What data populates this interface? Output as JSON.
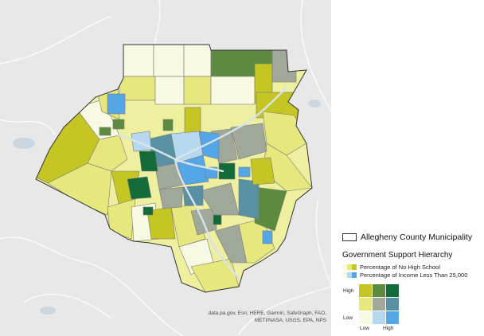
{
  "attribution": "data.pa.gov, Esri, HERE, Garmin, SafeGraph, FAO, METI/NASA, USGS, EPA, NPS",
  "legend": {
    "municipality_label": "Allegheny County Municipality",
    "hierarchy_title": "Government Support Hierarchy",
    "ramp_no_high_school": "Percentage of No High School",
    "ramp_income": "Percentage of Income Less Than 25,000",
    "axis_high": "High",
    "axis_low": "Low",
    "axis_x_low": "Low",
    "axis_x_high": "High"
  },
  "colors": {
    "basemap": "#e8e8e8",
    "water": "#c7d5e0",
    "boundary": "#7a7a7a",
    "outline": "#333333",
    "bivariate": {
      "low_low": "#f7f9e3",
      "low_mid": "#b6d8ee",
      "low_high": "#55a6e6",
      "mid_low": "#e6e87d",
      "mid_mid": "#a0a89a",
      "mid_high": "#5891a4",
      "high_low": "#c5c524",
      "high_mid": "#5c8b40",
      "high_high": "#146b3a"
    }
  }
}
